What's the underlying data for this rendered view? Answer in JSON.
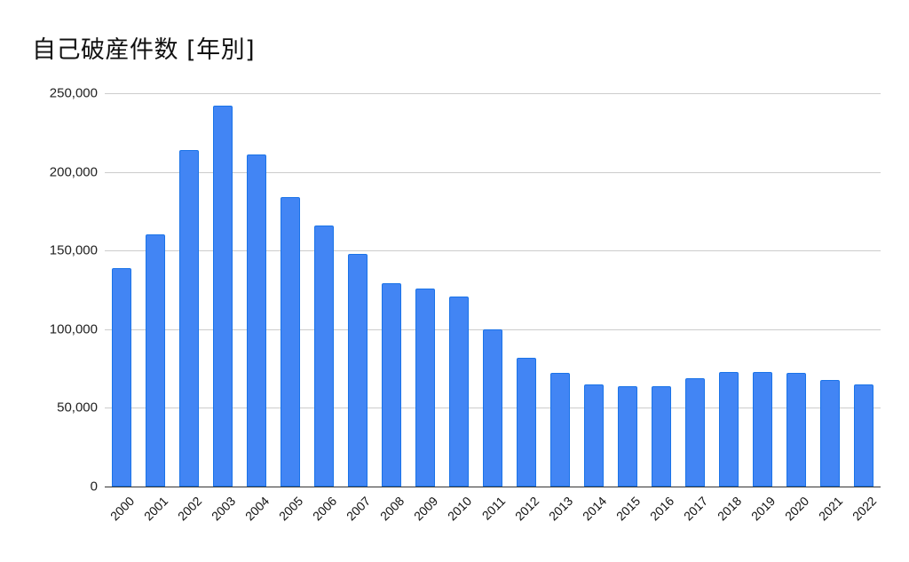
{
  "chart_data": {
    "type": "bar",
    "title": "自己破産件数 [年別]",
    "xlabel": "",
    "ylabel": "",
    "ylim": [
      0,
      250000
    ],
    "yticks": [
      "0",
      "50,000",
      "100,000",
      "150,000",
      "200,000",
      "250,000"
    ],
    "grid": true,
    "legend": "none",
    "bar_color": "#4285f4",
    "categories": [
      "2000",
      "2001",
      "2002",
      "2003",
      "2004",
      "2005",
      "2006",
      "2007",
      "2008",
      "2009",
      "2010",
      "2011",
      "2012",
      "2013",
      "2014",
      "2015",
      "2016",
      "2017",
      "2018",
      "2019",
      "2020",
      "2021",
      "2022"
    ],
    "values": [
      139000,
      160000,
      214000,
      242000,
      211000,
      184000,
      166000,
      148000,
      129000,
      126000,
      121000,
      100000,
      82000,
      72000,
      65000,
      64000,
      64000,
      69000,
      73000,
      73000,
      72000,
      68000,
      65000
    ]
  }
}
